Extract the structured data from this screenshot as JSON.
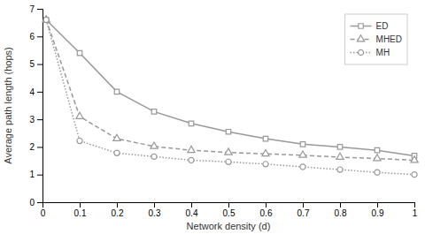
{
  "chart_data": {
    "type": "line",
    "x": [
      0.01,
      0.1,
      0.2,
      0.3,
      0.4,
      0.5,
      0.6,
      0.7,
      0.8,
      0.9,
      1.0
    ],
    "series": [
      {
        "name": "ED",
        "color": "#999999",
        "marker": "square",
        "line_style": "solid",
        "values": [
          6.6,
          5.4,
          4.0,
          3.28,
          2.85,
          2.55,
          2.3,
          2.1,
          2.0,
          1.88,
          1.68
        ]
      },
      {
        "name": "MHED",
        "color": "#999999",
        "marker": "triangle",
        "line_style": "dashed",
        "values": [
          6.6,
          3.1,
          2.3,
          2.02,
          1.88,
          1.8,
          1.75,
          1.7,
          1.63,
          1.58,
          1.52
        ]
      },
      {
        "name": "MH",
        "color": "#999999",
        "marker": "circle",
        "line_style": "dotted",
        "values": [
          6.6,
          2.22,
          1.78,
          1.65,
          1.52,
          1.46,
          1.38,
          1.28,
          1.18,
          1.08,
          1.0
        ]
      }
    ],
    "xlabel": "Network density (d)",
    "ylabel": "Average path length (hops)",
    "xlim": [
      0,
      1.0
    ],
    "ylim": [
      0,
      7
    ],
    "xticks": [
      0,
      0.1,
      0.2,
      0.3,
      0.4,
      0.5,
      0.6,
      0.7,
      0.8,
      0.9,
      1
    ],
    "yticks": [
      0,
      1,
      2,
      3,
      4,
      5,
      6,
      7
    ],
    "grid": false,
    "legend": "upper right"
  }
}
